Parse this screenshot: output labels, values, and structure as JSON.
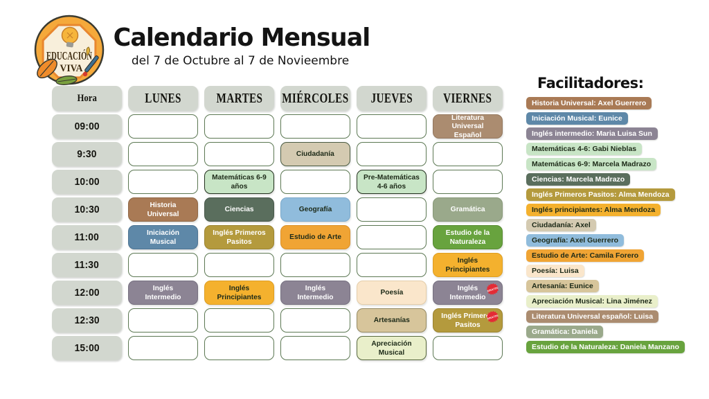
{
  "header": {
    "title": "Calendario Mensual",
    "subtitle": "del 7 de Octubre al 7 de Novieembre",
    "logo": {
      "line1": "EDUCACIÓN",
      "line2": "VIVA"
    }
  },
  "palette": {
    "header_gray": {
      "bg": "#d2d7cf",
      "text": "#14140f"
    },
    "empty": {
      "bg": "#ffffff",
      "border": "#5b7752"
    },
    "brown": {
      "bg": "#a97a55",
      "text": "#ffffff",
      "border": "#8f6746"
    },
    "litbrown": {
      "bg": "#ab8c70",
      "text": "#ffffff",
      "border": "#93775e"
    },
    "steelblue": {
      "bg": "#5e88a8",
      "text": "#ffffff",
      "border": "#4d7392"
    },
    "graypurple": {
      "bg": "#8c8494",
      "text": "#ffffff",
      "border": "#767080"
    },
    "lightgreen": {
      "bg": "#c8e5c6",
      "text": "#1d2a18",
      "border": "#22301d"
    },
    "darkgreen": {
      "bg": "#5a6e5d",
      "text": "#ffffff",
      "border": "#49594c"
    },
    "lightblue": {
      "bg": "#90bcdc",
      "text": "#1d2a18",
      "border": "#7aa8ca"
    },
    "olive": {
      "bg": "#b49a3d",
      "text": "#ffffff",
      "border": "#9a8330"
    },
    "orange": {
      "bg": "#f0a434",
      "text": "#1d2a18",
      "border": "#d98f28"
    },
    "sage": {
      "bg": "#9aa98b",
      "text": "#ffffff",
      "border": "#879878"
    },
    "green": {
      "bg": "#68a33e",
      "text": "#ffffff",
      "border": "#578a32"
    },
    "yellow": {
      "bg": "#f4b12e",
      "text": "#1d2a18",
      "border": "#dd9d22"
    },
    "cream": {
      "bg": "#fae6cb",
      "text": "#1d2a18",
      "border": "#e4cda9"
    },
    "tan": {
      "bg": "#d7c59b",
      "text": "#1d2a18",
      "border": "#958a63"
    },
    "palegreen": {
      "bg": "#e9efca",
      "text": "#1d2a18",
      "border": "#55663c"
    },
    "beige": {
      "bg": "#d4cab1",
      "text": "#1d2a18",
      "border": "#4a5b42"
    },
    "badge_red": {
      "bg": "#e42b35",
      "text": "#ffffff"
    }
  },
  "schedule": {
    "hora_label": "Hora",
    "days": [
      "LUNES",
      "MARTES",
      "MIÉRCOLES",
      "JUEVES",
      "VIERNES"
    ],
    "rows": [
      {
        "time": "09:00",
        "cells": [
          null,
          null,
          null,
          null,
          {
            "label": "Literatura Universal Español",
            "color": "litbrown"
          }
        ]
      },
      {
        "time": "9:30",
        "cells": [
          null,
          null,
          {
            "label": "Ciudadanía",
            "color": "beige"
          },
          null,
          null
        ]
      },
      {
        "time": "10:00",
        "cells": [
          null,
          {
            "label": "Matemáticas 6-9 años",
            "color": "lightgreen"
          },
          null,
          {
            "label": "Pre-Matemáticas 4-6 años",
            "color": "lightgreen"
          },
          null
        ]
      },
      {
        "time": "10:30",
        "cells": [
          {
            "label": "Historia Universal",
            "color": "brown"
          },
          {
            "label": "Ciencias",
            "color": "darkgreen"
          },
          {
            "label": "Geografía",
            "color": "lightblue"
          },
          null,
          {
            "label": "Gramática",
            "color": "sage"
          }
        ]
      },
      {
        "time": "11:00",
        "cells": [
          {
            "label": "Iniciación Musical",
            "color": "steelblue"
          },
          {
            "label": "Inglés Primeros Pasitos",
            "color": "olive"
          },
          {
            "label": "Estudio de Arte",
            "color": "orange"
          },
          null,
          {
            "label": "Estudio de la Naturaleza",
            "color": "green"
          }
        ]
      },
      {
        "time": "11:30",
        "cells": [
          null,
          null,
          null,
          null,
          {
            "label": "Inglés Principiantes",
            "color": "yellow"
          }
        ]
      },
      {
        "time": "12:00",
        "cells": [
          {
            "label": "Inglés Intermedio",
            "color": "graypurple"
          },
          {
            "label": "Inglés Principiantes",
            "color": "yellow"
          },
          {
            "label": "Inglés Intermedio",
            "color": "graypurple"
          },
          {
            "label": "Poesía",
            "color": "cream"
          },
          {
            "label": "Inglés Intermedio",
            "color": "graypurple",
            "badge": "ADULTOS"
          }
        ]
      },
      {
        "time": "12:30",
        "cells": [
          null,
          null,
          null,
          {
            "label": "Artesanías",
            "color": "tan"
          },
          {
            "label": "Inglés Primeros Pasitos",
            "color": "olive",
            "badge": "ADULTOS"
          }
        ]
      },
      {
        "time": "15:00",
        "cells": [
          null,
          null,
          null,
          {
            "label": "Apreciación Musical",
            "color": "palegreen"
          },
          null
        ]
      }
    ]
  },
  "facilitators": {
    "title": "Facilitadores:",
    "items": [
      {
        "label": "Historia Universal: Axel Guerrero",
        "color": "brown"
      },
      {
        "label": "Iniciación Musical: Eunice",
        "color": "steelblue"
      },
      {
        "label": "Inglés intermedio: Maria Luisa Sun",
        "color": "graypurple"
      },
      {
        "label": "Matemáticas 4-6: Gabi Nieblas",
        "color": "lightgreen"
      },
      {
        "label": "Matemáticas 6-9: Marcela Madrazo",
        "color": "lightgreen"
      },
      {
        "label": "Ciencias: Marcela Madrazo",
        "color": "darkgreen"
      },
      {
        "label": "Inglés Primeros Pasitos: Alma Mendoza",
        "color": "olive"
      },
      {
        "label": "Inglés principiantes: Alma Mendoza",
        "color": "yellow"
      },
      {
        "label": "Ciudadanía: Axel",
        "color": "beige"
      },
      {
        "label": "Geografía: Axel Guerrero",
        "color": "lightblue"
      },
      {
        "label": "Estudio de Arte: Camila Forero",
        "color": "orange"
      },
      {
        "label": "Poesía: Luisa",
        "color": "cream"
      },
      {
        "label": "Artesanía: Eunice",
        "color": "tan"
      },
      {
        "label": "Apreciación Musical: Lina Jiménez",
        "color": "palegreen"
      },
      {
        "label": "Literatura Universal español: Luisa",
        "color": "litbrown"
      },
      {
        "label": "Gramática: Daniela",
        "color": "sage"
      },
      {
        "label": "Estudio de la Naturaleza: Daniela Manzano",
        "color": "green"
      }
    ]
  }
}
